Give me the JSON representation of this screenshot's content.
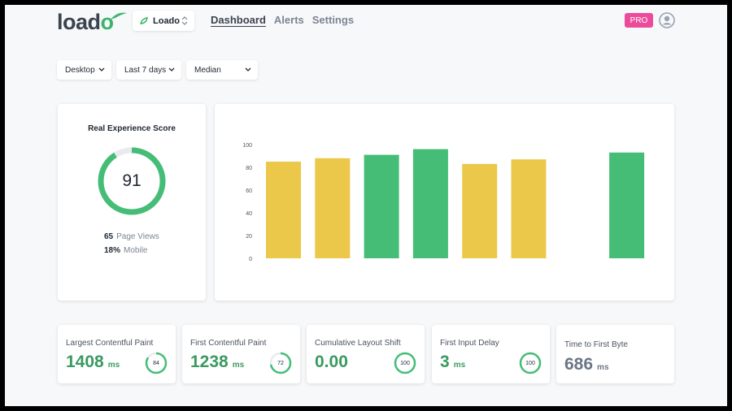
{
  "header": {
    "logo_text": "load",
    "logo_o": "o",
    "site_selector": "Loado",
    "nav": [
      {
        "label": "Dashboard",
        "active": true
      },
      {
        "label": "Alerts",
        "active": false
      },
      {
        "label": "Settings",
        "active": false
      }
    ],
    "pro_badge": "PRO",
    "icons": {
      "site": "leaf-icon",
      "site_chevron": "up-down-chevron-icon",
      "avatar": "user-avatar-icon"
    }
  },
  "filters": [
    {
      "label": "Desktop"
    },
    {
      "label": "Last 7 days"
    },
    {
      "label": "Median"
    }
  ],
  "score_card": {
    "title": "Real Experience Score",
    "score": 91,
    "score_text": "91",
    "page_views_value": "65",
    "page_views_label": "Page Views",
    "mobile_value": "18%",
    "mobile_label": "Mobile"
  },
  "chart_data": {
    "type": "bar",
    "values": [
      85,
      88,
      91,
      96,
      83,
      87,
      null,
      93
    ],
    "colors": [
      "#ebc84a",
      "#ebc84a",
      "#46bd77",
      "#46bd77",
      "#ebc84a",
      "#ebc84a",
      null,
      "#46bd77"
    ],
    "ylim": [
      0,
      100
    ],
    "yticks": [
      "0",
      "20",
      "40",
      "60",
      "80",
      "100"
    ]
  },
  "metrics": [
    {
      "title": "Largest Contentful Paint",
      "value": "1408",
      "unit": "ms",
      "score": "84",
      "color": "green"
    },
    {
      "title": "First Contentful Paint",
      "value": "1238",
      "unit": "ms",
      "score": "72",
      "color": "green"
    },
    {
      "title": "Cumulative Layout Shift",
      "value": "0.00",
      "unit": "",
      "score": "100",
      "color": "green"
    },
    {
      "title": "First Input Delay",
      "value": "3",
      "unit": "ms",
      "score": "100",
      "color": "green"
    },
    {
      "title": "Time to First Byte",
      "value": "686",
      "unit": "ms",
      "score": "",
      "color": "gray"
    }
  ],
  "colors": {
    "green": "#46bd77",
    "yellow": "#ebc84a",
    "pink": "#ec4b9c",
    "ring_track": "#e8eaee"
  }
}
